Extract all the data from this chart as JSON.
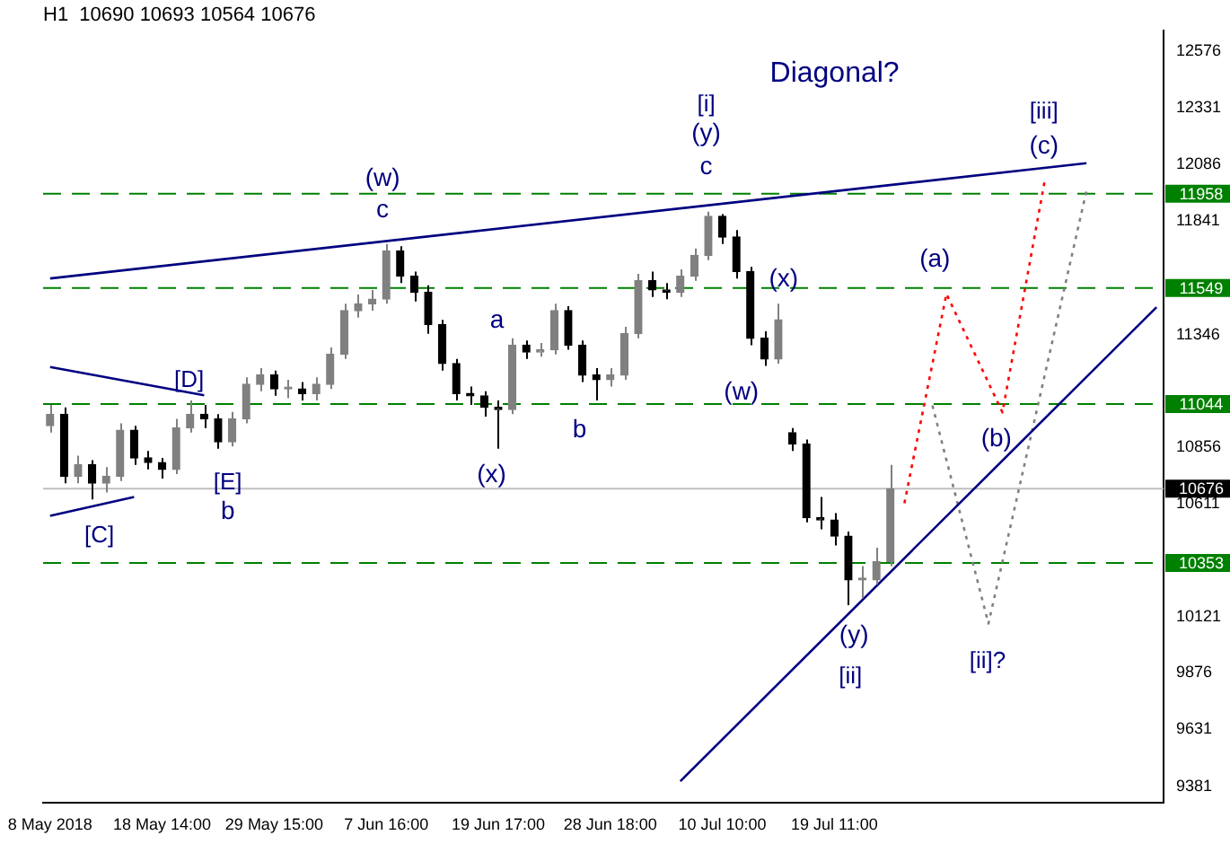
{
  "chart_data": {
    "type": "candlestick",
    "subtitle": "H1  10690 10693 10564 10676",
    "categories": [
      "8 May 2018",
      null,
      null,
      null,
      null,
      null,
      null,
      null,
      "18 May 14:00",
      null,
      null,
      null,
      null,
      null,
      null,
      null,
      "29 May 15:00",
      null,
      null,
      null,
      null,
      null,
      null,
      null,
      "7 Jun 16:00",
      null,
      null,
      null,
      null,
      null,
      null,
      null,
      "19 Jun 17:00",
      null,
      null,
      null,
      null,
      null,
      null,
      null,
      "28 Jun 18:00",
      null,
      null,
      null,
      null,
      null,
      null,
      null,
      "10 Jul 10:00",
      null,
      null,
      null,
      null,
      null,
      null,
      null,
      "19 Jul 11:00",
      null,
      null,
      null,
      null,
      null,
      null,
      null,
      null,
      null,
      null,
      null,
      null,
      null,
      null,
      null,
      null,
      null,
      null,
      null,
      null,
      null,
      null,
      null
    ],
    "series": [
      {
        "type": "candlestick",
        "colors": [
          "#808080",
          "#000000",
          "#808080",
          "#000000",
          "#808080",
          "#808080",
          "#000000",
          "#000000",
          "#000000",
          "#808080",
          "#808080",
          "#000000",
          "#000000",
          "#808080",
          "#808080",
          "#808080",
          "#000000",
          "#808080",
          "#000000",
          "#808080",
          "#808080",
          "#808080",
          "#808080",
          "#808080",
          "#808080",
          "#000000",
          "#000000",
          "#000000",
          "#000000",
          "#000000",
          "#000000",
          "#000000",
          "#000000",
          "#808080",
          "#000000",
          "#808080",
          "#808080",
          "#000000",
          "#000000",
          "#000000",
          "#808080",
          "#808080",
          "#808080",
          "#000000",
          "#000000",
          "#808080",
          "#808080",
          "#808080",
          "#000000",
          "#000000",
          "#000000",
          "#000000",
          "#808080",
          "#000000",
          "#000000",
          "#000000",
          "#000000",
          "#000000",
          "#808080",
          "#808080",
          "#808080",
          null,
          null,
          null,
          null,
          null,
          null,
          null,
          null,
          null,
          null,
          null,
          null,
          null,
          null,
          null,
          null,
          null,
          null,
          null
        ],
        "ohlc": [
          [
            10950,
            11040,
            10920,
            11000
          ],
          [
            11000,
            11030,
            10700,
            10730
          ],
          [
            10730,
            10820,
            10700,
            10780
          ],
          [
            10780,
            10800,
            10630,
            10700
          ],
          [
            10700,
            10770,
            10660,
            10730
          ],
          [
            10730,
            10960,
            10710,
            10930
          ],
          [
            10930,
            10950,
            10780,
            10810
          ],
          [
            10810,
            10840,
            10760,
            10790
          ],
          [
            10790,
            10810,
            10720,
            10760
          ],
          [
            10760,
            10980,
            10740,
            10940
          ],
          [
            10940,
            11060,
            10920,
            11000
          ],
          [
            11000,
            11040,
            10940,
            10980
          ],
          [
            10980,
            11000,
            10850,
            10880
          ],
          [
            10880,
            11010,
            10860,
            10980
          ],
          [
            10980,
            11160,
            10960,
            11130
          ],
          [
            11130,
            11200,
            11100,
            11170
          ],
          [
            11170,
            11190,
            11080,
            11110
          ],
          [
            11110,
            11150,
            11070,
            11110
          ],
          [
            11110,
            11140,
            11060,
            11090
          ],
          [
            11090,
            11160,
            11060,
            11130
          ],
          [
            11130,
            11290,
            11110,
            11260
          ],
          [
            11260,
            11480,
            11240,
            11450
          ],
          [
            11450,
            11520,
            11420,
            11480
          ],
          [
            11480,
            11540,
            11450,
            11500
          ],
          [
            11500,
            11740,
            11480,
            11710
          ],
          [
            11710,
            11730,
            11570,
            11600
          ],
          [
            11600,
            11620,
            11490,
            11530
          ],
          [
            11530,
            11560,
            11350,
            11390
          ],
          [
            11390,
            11410,
            11190,
            11220
          ],
          [
            11220,
            11240,
            11060,
            11090
          ],
          [
            11090,
            11120,
            11040,
            11080
          ],
          [
            11080,
            11100,
            10990,
            11030
          ],
          [
            11030,
            11060,
            10850,
            11020
          ],
          [
            11020,
            11330,
            11000,
            11300
          ],
          [
            11300,
            11320,
            11240,
            11270
          ],
          [
            11270,
            11310,
            11250,
            11280
          ],
          [
            11280,
            11480,
            11260,
            11450
          ],
          [
            11450,
            11470,
            11280,
            11300
          ],
          [
            11300,
            11320,
            11140,
            11170
          ],
          [
            11170,
            11200,
            11060,
            11150
          ],
          [
            11150,
            11200,
            11120,
            11170
          ],
          [
            11170,
            11380,
            11150,
            11350
          ],
          [
            11350,
            11610,
            11330,
            11580
          ],
          [
            11580,
            11620,
            11510,
            11540
          ],
          [
            11540,
            11570,
            11500,
            11530
          ],
          [
            11530,
            11630,
            11510,
            11600
          ],
          [
            11600,
            11720,
            11580,
            11690
          ],
          [
            11690,
            11880,
            11670,
            11860
          ],
          [
            11860,
            11870,
            11740,
            11770
          ],
          [
            11770,
            11800,
            11590,
            11620
          ],
          [
            11620,
            11640,
            11300,
            11330
          ],
          [
            11330,
            11360,
            11210,
            11240
          ],
          [
            11240,
            11480,
            11220,
            11410
          ],
          [
            10920,
            10940,
            10840,
            10870
          ],
          [
            10870,
            10890,
            10530,
            10550
          ],
          [
            10550,
            10640,
            10500,
            10540
          ],
          [
            10540,
            10570,
            10430,
            10470
          ],
          [
            10470,
            10490,
            10170,
            10280
          ],
          [
            10280,
            10340,
            10200,
            10280
          ],
          [
            10280,
            10420,
            10260,
            10360
          ],
          [
            10360,
            10780,
            10340,
            10676
          ],
          null,
          null,
          null,
          null,
          null,
          null,
          null,
          null,
          null,
          null,
          null,
          null,
          null,
          null,
          null,
          null,
          null,
          null,
          null
        ]
      },
      {
        "type": "line",
        "color": "#000080",
        "line_style": "solid",
        "values": [
          11590,
          null,
          null,
          null,
          null,
          null,
          null,
          null,
          null,
          null,
          null,
          null,
          null,
          null,
          null,
          null,
          null,
          null,
          null,
          null,
          null,
          null,
          null,
          null,
          null,
          null,
          null,
          null,
          null,
          null,
          null,
          null,
          null,
          null,
          null,
          null,
          null,
          null,
          null,
          null,
          null,
          null,
          null,
          null,
          null,
          null,
          null,
          null,
          null,
          null,
          null,
          null,
          null,
          null,
          null,
          null,
          null,
          null,
          null,
          null,
          null,
          null,
          null,
          null,
          null,
          null,
          null,
          null,
          null,
          null,
          null,
          null,
          null,
          null,
          12091,
          null,
          null,
          null,
          null,
          null
        ]
      },
      {
        "type": "line",
        "color": "#000080",
        "line_style": "solid",
        "values": [
          null,
          null,
          null,
          null,
          null,
          null,
          null,
          null,
          null,
          null,
          null,
          null,
          null,
          null,
          null,
          null,
          null,
          null,
          null,
          null,
          null,
          null,
          null,
          null,
          null,
          null,
          null,
          null,
          null,
          null,
          null,
          null,
          null,
          null,
          null,
          null,
          null,
          null,
          null,
          null,
          null,
          null,
          null,
          null,
          null,
          9405,
          null,
          null,
          null,
          null,
          null,
          null,
          null,
          null,
          null,
          null,
          null,
          null,
          null,
          null,
          null,
          null,
          null,
          null,
          null,
          null,
          null,
          null,
          null,
          null,
          null,
          null,
          null,
          null,
          null,
          null,
          null,
          null,
          null,
          11465
        ]
      },
      {
        "type": "line",
        "color": "#000080",
        "line_style": "solid",
        "values": [
          11205,
          null,
          null,
          null,
          null,
          null,
          null,
          null,
          null,
          null,
          null,
          11082,
          null,
          null,
          null,
          null,
          null,
          null,
          null,
          null,
          null,
          null,
          null,
          null,
          null,
          null,
          null,
          null,
          null,
          null,
          null,
          null,
          null,
          null,
          null,
          null,
          null,
          null,
          null,
          null,
          null,
          null,
          null,
          null,
          null,
          null,
          null,
          null,
          null,
          null,
          null,
          null,
          null,
          null,
          null,
          null,
          null,
          null,
          null,
          null,
          null,
          null,
          null,
          null,
          null,
          null,
          null,
          null,
          null,
          null,
          null,
          null,
          null,
          null,
          null,
          null,
          null,
          null,
          null,
          null
        ]
      },
      {
        "type": "line",
        "color": "#000080",
        "line_style": "solid",
        "values": [
          10558,
          null,
          null,
          null,
          null,
          null,
          10640,
          null,
          null,
          null,
          null,
          null,
          null,
          null,
          null,
          null,
          null,
          null,
          null,
          null,
          null,
          null,
          null,
          null,
          null,
          null,
          null,
          null,
          null,
          null,
          null,
          null,
          null,
          null,
          null,
          null,
          null,
          null,
          null,
          null,
          null,
          null,
          null,
          null,
          null,
          null,
          null,
          null,
          null,
          null,
          null,
          null,
          null,
          null,
          null,
          null,
          null,
          null,
          null,
          null,
          null,
          null,
          null,
          null,
          null,
          null,
          null,
          null,
          null,
          null,
          null,
          null,
          null,
          null,
          null,
          null,
          null,
          null,
          null,
          null
        ]
      },
      {
        "type": "line",
        "color": "#ff0000",
        "line_style": "dotted",
        "values": [
          null,
          null,
          null,
          null,
          null,
          null,
          null,
          null,
          null,
          null,
          null,
          null,
          null,
          null,
          null,
          null,
          null,
          null,
          null,
          null,
          null,
          null,
          null,
          null,
          null,
          null,
          null,
          null,
          null,
          null,
          null,
          null,
          null,
          null,
          null,
          null,
          null,
          null,
          null,
          null,
          null,
          null,
          null,
          null,
          null,
          null,
          null,
          null,
          null,
          null,
          null,
          null,
          null,
          null,
          null,
          null,
          null,
          null,
          null,
          null,
          null,
          10613,
          null,
          null,
          11523,
          null,
          null,
          null,
          11008,
          null,
          null,
          12009,
          null,
          null,
          null,
          null,
          null,
          null,
          null,
          null
        ]
      },
      {
        "type": "line",
        "color": "#808080",
        "line_style": "dotted",
        "values": [
          null,
          null,
          null,
          null,
          null,
          null,
          null,
          null,
          null,
          null,
          null,
          null,
          null,
          null,
          null,
          null,
          null,
          null,
          null,
          null,
          null,
          null,
          null,
          null,
          null,
          null,
          null,
          null,
          null,
          null,
          null,
          null,
          null,
          null,
          null,
          null,
          null,
          null,
          null,
          null,
          null,
          null,
          null,
          null,
          null,
          null,
          null,
          null,
          null,
          null,
          null,
          null,
          null,
          null,
          null,
          null,
          null,
          null,
          null,
          null,
          null,
          null,
          null,
          11038,
          null,
          null,
          null,
          10090,
          null,
          null,
          null,
          null,
          null,
          null,
          11971,
          null,
          null,
          null,
          null,
          null
        ]
      }
    ],
    "ylim": [
      9310,
      12666
    ],
    "yticks": [
      12576,
      12331,
      12086,
      11841,
      11346,
      10856,
      10611,
      10121,
      9876,
      9631,
      9381
    ],
    "ref_lines": [
      {
        "axis": "y",
        "value": 11958,
        "label": "11958",
        "color": "#008000",
        "line_style": "dashed"
      },
      {
        "axis": "y",
        "value": 11549,
        "label": "11549",
        "color": "#008000",
        "line_style": "dashed"
      },
      {
        "axis": "y",
        "value": 11044,
        "label": "11044",
        "color": "#008000",
        "line_style": "dashed"
      },
      {
        "axis": "y",
        "value": 10353,
        "label": "10353",
        "color": "#008000",
        "line_style": "dashed"
      },
      {
        "axis": "y",
        "value": 10676,
        "label": "10676",
        "color": "#c0c0c0",
        "line_style": "solid"
      }
    ],
    "annotations": [
      "Diagonal?",
      "(w)",
      "c",
      "a",
      "b",
      "(x)",
      "[D]",
      "[E]",
      "b",
      "[C]",
      "[i]",
      "(y)",
      "c",
      "(x)",
      "(w)",
      "(a)",
      "(b)",
      "[iii]",
      "(c)",
      "(y)",
      "[ii]",
      "[ii]?"
    ]
  }
}
